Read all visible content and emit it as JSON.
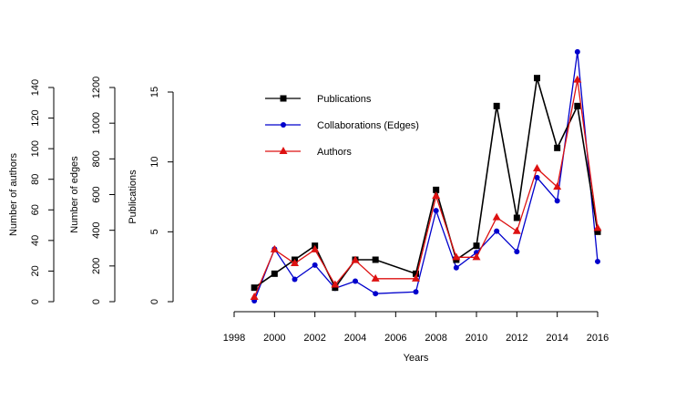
{
  "chart_data": {
    "type": "line",
    "x": [
      1999,
      2000,
      2001,
      2002,
      2003,
      2004,
      2005,
      2007,
      2008,
      2009,
      2010,
      2011,
      2012,
      2013,
      2014,
      2015,
      2016
    ],
    "xlabel": "Years",
    "xlim": [
      1998,
      2016
    ],
    "xticks": [
      "1998",
      "2000",
      "2002",
      "2004",
      "2006",
      "2008",
      "2010",
      "2012",
      "2014",
      "2016"
    ],
    "legend_position": "top-left",
    "grid": false,
    "series": [
      {
        "name": "Publications",
        "axis": "Publications",
        "color": "#000000",
        "marker": "square",
        "values": [
          1,
          2,
          3,
          4,
          1,
          3,
          3,
          2,
          8,
          3,
          4,
          14,
          6,
          16,
          11,
          14,
          5
        ]
      },
      {
        "name": "Collaborations (Edges)",
        "axis": "Number of edges",
        "color": "#0000cc",
        "marker": "circle",
        "values": [
          5,
          295,
          125,
          205,
          75,
          115,
          45,
          55,
          510,
          190,
          275,
          395,
          280,
          695,
          565,
          1400,
          225
        ]
      },
      {
        "name": "Authors",
        "axis": "Number of authors",
        "color": "#dd1111",
        "marker": "triangle",
        "values": [
          3,
          34,
          25,
          34,
          11,
          27,
          15,
          15,
          69,
          29,
          29,
          55,
          46,
          87,
          75,
          145,
          48
        ]
      }
    ],
    "axes": [
      {
        "label": "Number of authors",
        "ylim": [
          0,
          140
        ],
        "ticks": [
          "0",
          "20",
          "40",
          "60",
          "80",
          "100",
          "120",
          "140"
        ]
      },
      {
        "label": "Number of edges",
        "ylim": [
          0,
          1200
        ],
        "ticks": [
          "0",
          "200",
          "400",
          "600",
          "800",
          "1000",
          "1200"
        ]
      },
      {
        "label": "Publications",
        "ylim": [
          0,
          15
        ],
        "ticks": [
          "0",
          "5",
          "10",
          "15"
        ]
      }
    ]
  }
}
